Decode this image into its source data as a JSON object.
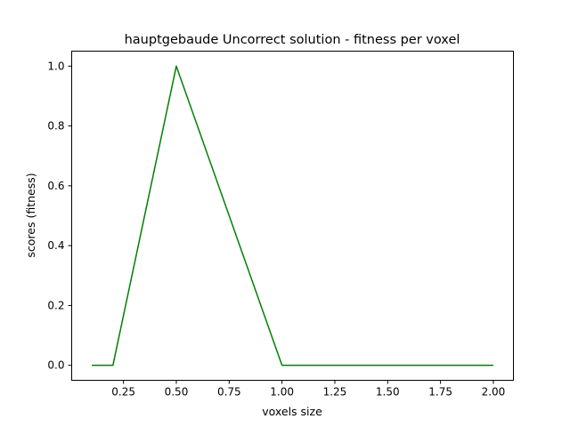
{
  "chart_data": {
    "type": "line",
    "title": "hauptgebaude Uncorrect solution - fitness per voxel",
    "xlabel": "voxels size",
    "ylabel": "scores (fitness)",
    "xlim": [
      0.005,
      2.095
    ],
    "ylim": [
      -0.05,
      1.05
    ],
    "xticks": [
      0.25,
      0.5,
      0.75,
      1.0,
      1.25,
      1.5,
      1.75,
      2.0
    ],
    "xtick_labels": [
      "0.25",
      "0.50",
      "0.75",
      "1.00",
      "1.25",
      "1.50",
      "1.75",
      "2.00"
    ],
    "yticks": [
      0.0,
      0.2,
      0.4,
      0.6,
      0.8,
      1.0
    ],
    "ytick_labels": [
      "0.0",
      "0.2",
      "0.4",
      "0.6",
      "0.8",
      "1.0"
    ],
    "grid": false,
    "series": [
      {
        "color": "#008000",
        "x": [
          0.1,
          0.2,
          0.5,
          1.0,
          2.0
        ],
        "y": [
          0.0,
          0.0,
          1.0,
          0.0,
          0.0
        ]
      }
    ]
  }
}
